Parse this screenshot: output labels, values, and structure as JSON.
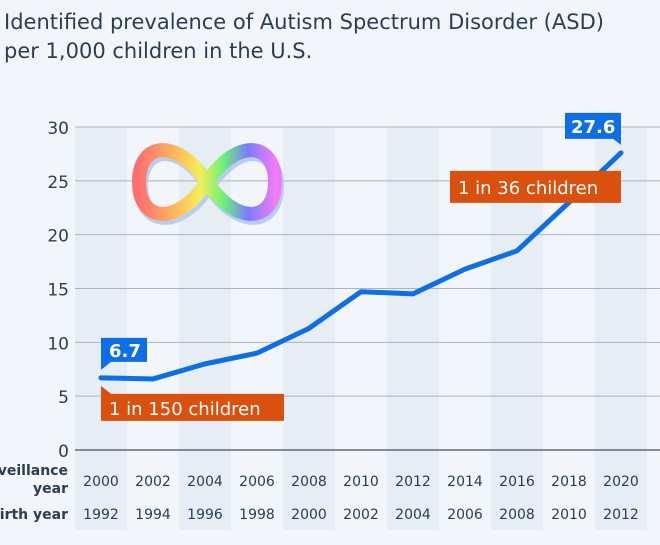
{
  "title_lines": [
    "Identified prevalence of Autism Spectrum Disorder (ASD)",
    "per 1,000 children in the U.S."
  ],
  "chart_data": {
    "type": "line",
    "title": "Identified prevalence of Autism Spectrum Disorder (ASD) per 1,000 children in the U.S.",
    "x_row_labels": [
      "Surveillance year",
      "Birth year"
    ],
    "categories": [
      "2000",
      "2002",
      "2004",
      "2006",
      "2008",
      "2010",
      "2012",
      "2014",
      "2016",
      "2018",
      "2020"
    ],
    "birth_years": [
      "1992",
      "1994",
      "1996",
      "1998",
      "2000",
      "2002",
      "2004",
      "2006",
      "2008",
      "2010",
      "2012"
    ],
    "values": [
      6.7,
      6.6,
      8.0,
      9.0,
      11.3,
      14.7,
      14.5,
      16.8,
      18.5,
      23.0,
      27.6
    ],
    "ylim": [
      0,
      30
    ],
    "yticks": [
      0,
      5,
      10,
      15,
      20,
      25,
      30
    ],
    "grid": true,
    "annotations": [
      {
        "index": 0,
        "value_label": "6.7",
        "text": "1 in 150 children"
      },
      {
        "index": 10,
        "value_label": "27.6",
        "text": "1 in 36 children"
      }
    ],
    "colors": {
      "line": "#0e6ee6",
      "value_box": "#0e6ee6",
      "note_box": "#d9500f",
      "shade": "#e7edf4",
      "background": "#f2f6fa"
    },
    "icon": "rainbow-infinity-icon"
  }
}
